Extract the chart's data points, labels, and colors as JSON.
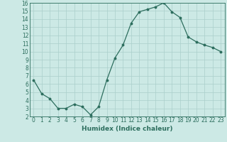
{
  "x": [
    0,
    1,
    2,
    3,
    4,
    5,
    6,
    7,
    8,
    9,
    10,
    11,
    12,
    13,
    14,
    15,
    16,
    17,
    18,
    19,
    20,
    21,
    22,
    23
  ],
  "y": [
    6.5,
    4.8,
    4.2,
    3.0,
    3.0,
    3.5,
    3.2,
    2.2,
    3.2,
    6.5,
    9.2,
    10.8,
    13.5,
    14.9,
    15.2,
    15.5,
    16.0,
    14.9,
    14.2,
    11.8,
    11.2,
    10.8,
    10.5,
    10.0
  ],
  "line_color": "#2d6e5e",
  "marker": "o",
  "marker_size": 1.8,
  "bg_color": "#cce9e5",
  "grid_color": "#aacfcb",
  "xlabel": "Humidex (Indice chaleur)",
  "xlabel_fontsize": 6.5,
  "xlim": [
    -0.5,
    23.5
  ],
  "ylim": [
    2,
    16
  ],
  "yticks": [
    2,
    3,
    4,
    5,
    6,
    7,
    8,
    9,
    10,
    11,
    12,
    13,
    14,
    15,
    16
  ],
  "xticks": [
    0,
    1,
    2,
    3,
    4,
    5,
    6,
    7,
    8,
    9,
    10,
    11,
    12,
    13,
    14,
    15,
    16,
    17,
    18,
    19,
    20,
    21,
    22,
    23
  ],
  "tick_fontsize": 5.5,
  "tick_color": "#2d6e5e",
  "spine_color": "#2d6e5e",
  "linewidth": 0.9
}
